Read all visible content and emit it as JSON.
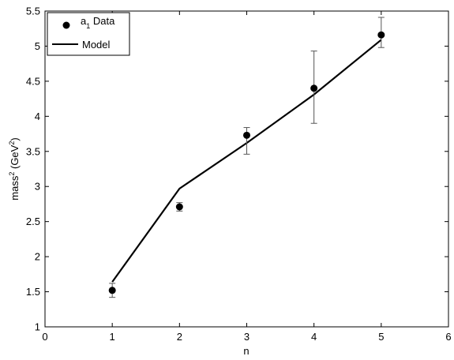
{
  "chart_data": {
    "type": "scatter",
    "xlabel": "n",
    "ylabel": "mass² (GeV²)",
    "ylabel_parts": {
      "base": "mass",
      "sup1": "2",
      "unit_open": " (GeV",
      "sup2": "2",
      "unit_close": ")"
    },
    "xlim": [
      0,
      6
    ],
    "ylim": [
      1,
      5.5
    ],
    "xticks": [
      "0",
      "1",
      "2",
      "3",
      "4",
      "5",
      "6"
    ],
    "yticks": [
      "1",
      "1.5",
      "2",
      "2.5",
      "3",
      "3.5",
      "4",
      "4.5",
      "5",
      "5.5"
    ],
    "grid": false,
    "legend_position": "top-left",
    "series": [
      {
        "name": "a₁ Data",
        "name_parts": {
          "base": "a",
          "sub": "1",
          "rest": " Data"
        },
        "kind": "errorbar-points",
        "x": [
          1,
          2,
          3,
          4,
          5
        ],
        "y": [
          1.52,
          2.71,
          3.73,
          4.4,
          5.16
        ],
        "y_err_low": [
          0.1,
          0.06,
          0.27,
          0.5,
          0.18
        ],
        "y_err_high": [
          0.1,
          0.06,
          0.11,
          0.53,
          0.25
        ]
      },
      {
        "name": "Model",
        "kind": "line",
        "x": [
          1,
          2,
          3,
          4,
          5
        ],
        "y": [
          1.64,
          2.97,
          3.62,
          4.31,
          5.09
        ]
      }
    ],
    "colors": {
      "data": "#000000",
      "model": "#000000",
      "errorbar": "#555555"
    }
  }
}
